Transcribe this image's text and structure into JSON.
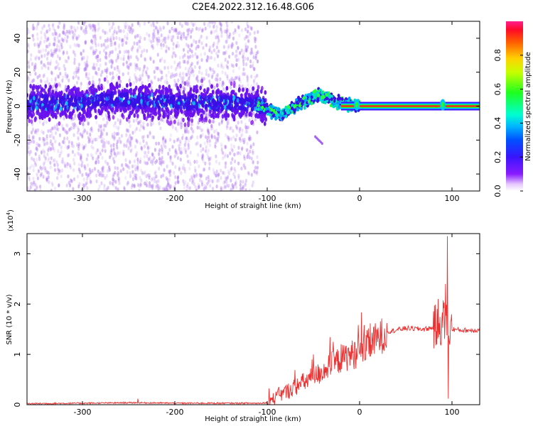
{
  "title": "C2E4.2022.312.16.48.G06",
  "colorbar": {
    "label": "Normalized spectral amplitude",
    "range": [
      0,
      1
    ],
    "ticks": [
      "0.0",
      "0.2",
      "0.4",
      "0.6",
      "0.8"
    ],
    "tick_values": [
      0.0,
      0.2,
      0.4,
      0.6,
      0.8
    ]
  },
  "chart_data": [
    {
      "type": "heatmap",
      "name": "spectrogram",
      "xlabel": "Height of straight line (km)",
      "ylabel": "Frequency (Hz)",
      "xlim": [
        -360,
        130
      ],
      "ylim": [
        -50,
        50
      ],
      "xticks": [
        -300,
        -200,
        -100,
        0,
        100
      ],
      "xtick_labels": [
        "-300",
        "-200",
        "-100",
        "0",
        "100"
      ],
      "yticks": [
        -40,
        -20,
        0,
        20,
        40
      ],
      "ytick_labels": [
        "-40",
        "-20",
        "0",
        "20",
        "40"
      ],
      "band_center": [
        [
          -360,
          2
        ],
        [
          -300,
          2
        ],
        [
          -270,
          4
        ],
        [
          -200,
          2
        ],
        [
          -150,
          2
        ],
        [
          -110,
          1
        ],
        [
          -95,
          -3
        ],
        [
          -85,
          -5
        ],
        [
          -75,
          -2
        ],
        [
          -60,
          3
        ],
        [
          -45,
          6
        ],
        [
          -35,
          5
        ],
        [
          -25,
          2
        ],
        [
          -15,
          1
        ],
        [
          -5,
          0
        ],
        [
          0,
          1
        ],
        [
          10,
          0
        ],
        [
          50,
          0
        ],
        [
          90,
          0
        ],
        [
          130,
          0
        ]
      ],
      "noise_extent_km": [
        -360,
        -110
      ],
      "peak_spots_km": [
        -3,
        90
      ]
    },
    {
      "type": "line",
      "name": "snr",
      "xlabel": "Height of straight line (km)",
      "ylabel": "SNR (10 * v/v)",
      "yscale_label": "(x10",
      "yscale_exponent": "4",
      "yscale_suffix": ")",
      "color": "#ef3030",
      "xlim": [
        -360,
        130
      ],
      "ylim": [
        0,
        3.4
      ],
      "xticks": [
        -300,
        -200,
        -100,
        0,
        100
      ],
      "xtick_labels": [
        "-300",
        "-200",
        "-100",
        "0",
        "100"
      ],
      "yticks": [
        0,
        1,
        2,
        3
      ],
      "ytick_labels": [
        "0",
        "1",
        "2",
        "3"
      ],
      "x": [
        -360,
        -300,
        -240,
        -200,
        -150,
        -110,
        -100,
        -90,
        -75,
        -60,
        -45,
        -30,
        -15,
        0,
        15,
        30,
        50,
        70,
        85,
        92,
        96,
        100,
        110,
        130
      ],
      "values": [
        0.02,
        0.03,
        0.04,
        0.03,
        0.03,
        0.03,
        0.04,
        0.15,
        0.3,
        0.45,
        0.6,
        0.8,
        0.95,
        1.05,
        1.25,
        1.45,
        1.52,
        1.5,
        1.55,
        1.7,
        1.55,
        1.5,
        1.48,
        1.48
      ],
      "spikes": [
        [
          -240,
          0.12
        ],
        [
          -50,
          1.0
        ],
        [
          -20,
          1.2
        ],
        [
          85,
          2.1
        ],
        [
          93,
          2.4
        ],
        [
          95,
          3.35
        ],
        [
          96,
          0.12
        ]
      ]
    }
  ]
}
